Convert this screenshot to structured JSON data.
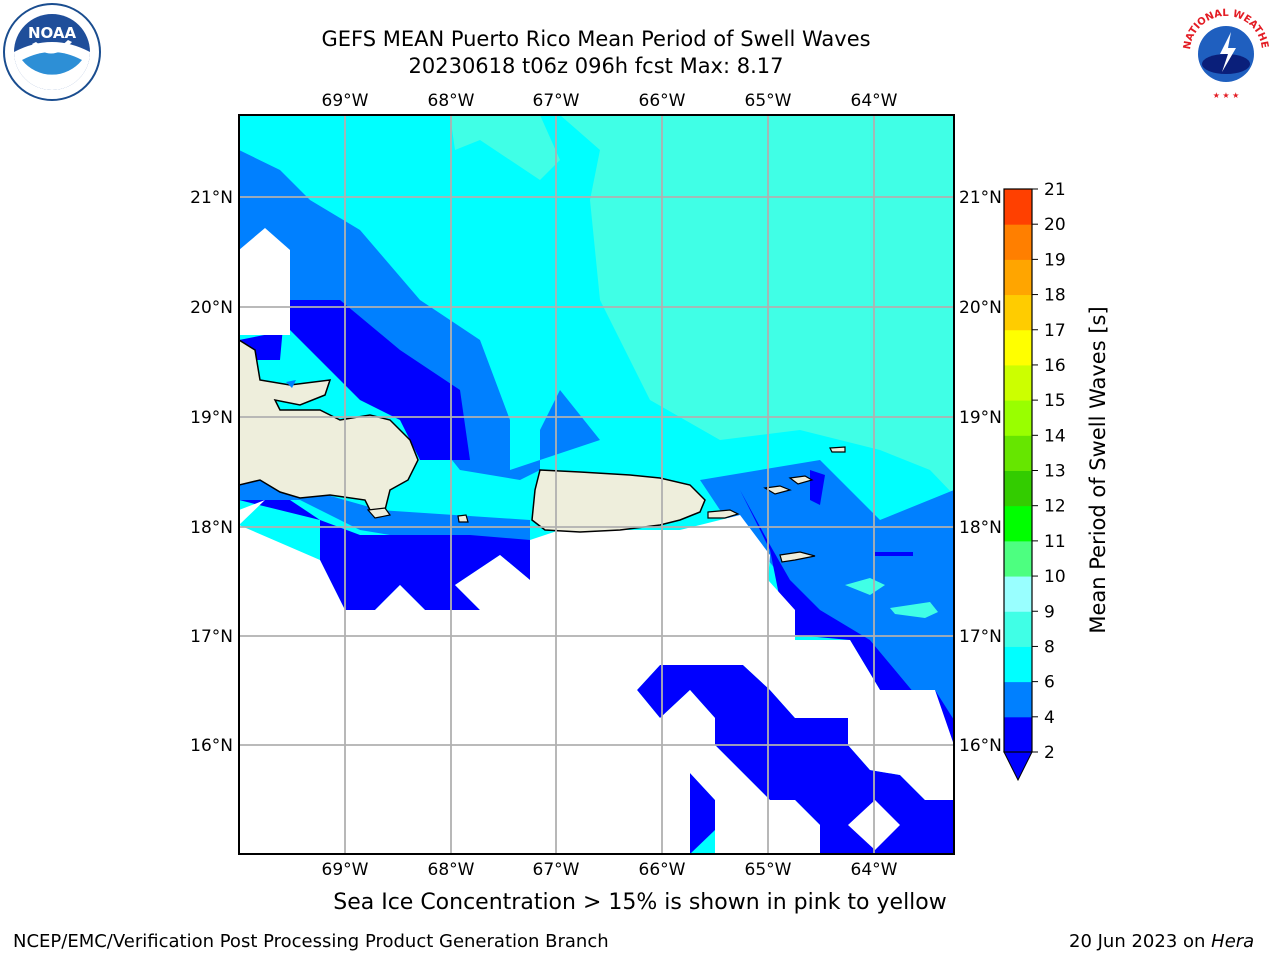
{
  "title": {
    "line1": "GEFS MEAN Puerto Rico Mean Period of Swell Waves",
    "line2": "20230618 t06z 096h fcst   Max: 8.17"
  },
  "logos": {
    "left": "NOAA",
    "right": "NATIONAL WEATHER SERVICE"
  },
  "map": {
    "lon_labels_top": [
      "69°W",
      "68°W",
      "67°W",
      "66°W",
      "65°W",
      "64°W"
    ],
    "lon_labels_bottom": [
      "69°W",
      "68°W",
      "67°W",
      "66°W",
      "65°W",
      "64°W"
    ],
    "lat_labels_left": [
      "21°N",
      "20°N",
      "19°N",
      "18°N",
      "17°N",
      "16°N"
    ],
    "lat_labels_right": [
      "21°N",
      "20°N",
      "19°N",
      "18°N",
      "17°N",
      "16°N"
    ],
    "region": "Puerto Rico",
    "lon_range": [
      -70,
      -63.25
    ],
    "lat_range": [
      15,
      21.75
    ]
  },
  "colorbar": {
    "label": "Mean Period of Swell Waves [s]",
    "ticks": [
      "2",
      "4",
      "6",
      "8",
      "9",
      "10",
      "11",
      "12",
      "13",
      "14",
      "15",
      "16",
      "17",
      "18",
      "19",
      "20",
      "21"
    ],
    "colors": [
      "#0000ff",
      "#0080ff",
      "#00ffff",
      "#40ffe6",
      "#99ffff",
      "#4dff80",
      "#00ff00",
      "#33cc00",
      "#66e600",
      "#99ff00",
      "#ccff00",
      "#ffff00",
      "#ffcc00",
      "#ffa500",
      "#ff7f00",
      "#ff4000",
      "#ff0000"
    ],
    "extend_color": "#0000ff"
  },
  "note": "Sea Ice Concentration > 15% is shown in pink to yellow",
  "footer": {
    "left": "NCEP/EMC/Verification Post Processing Product Generation Branch",
    "right_prefix": "20 Jun 2023 on ",
    "right_italic": "Hera"
  }
}
